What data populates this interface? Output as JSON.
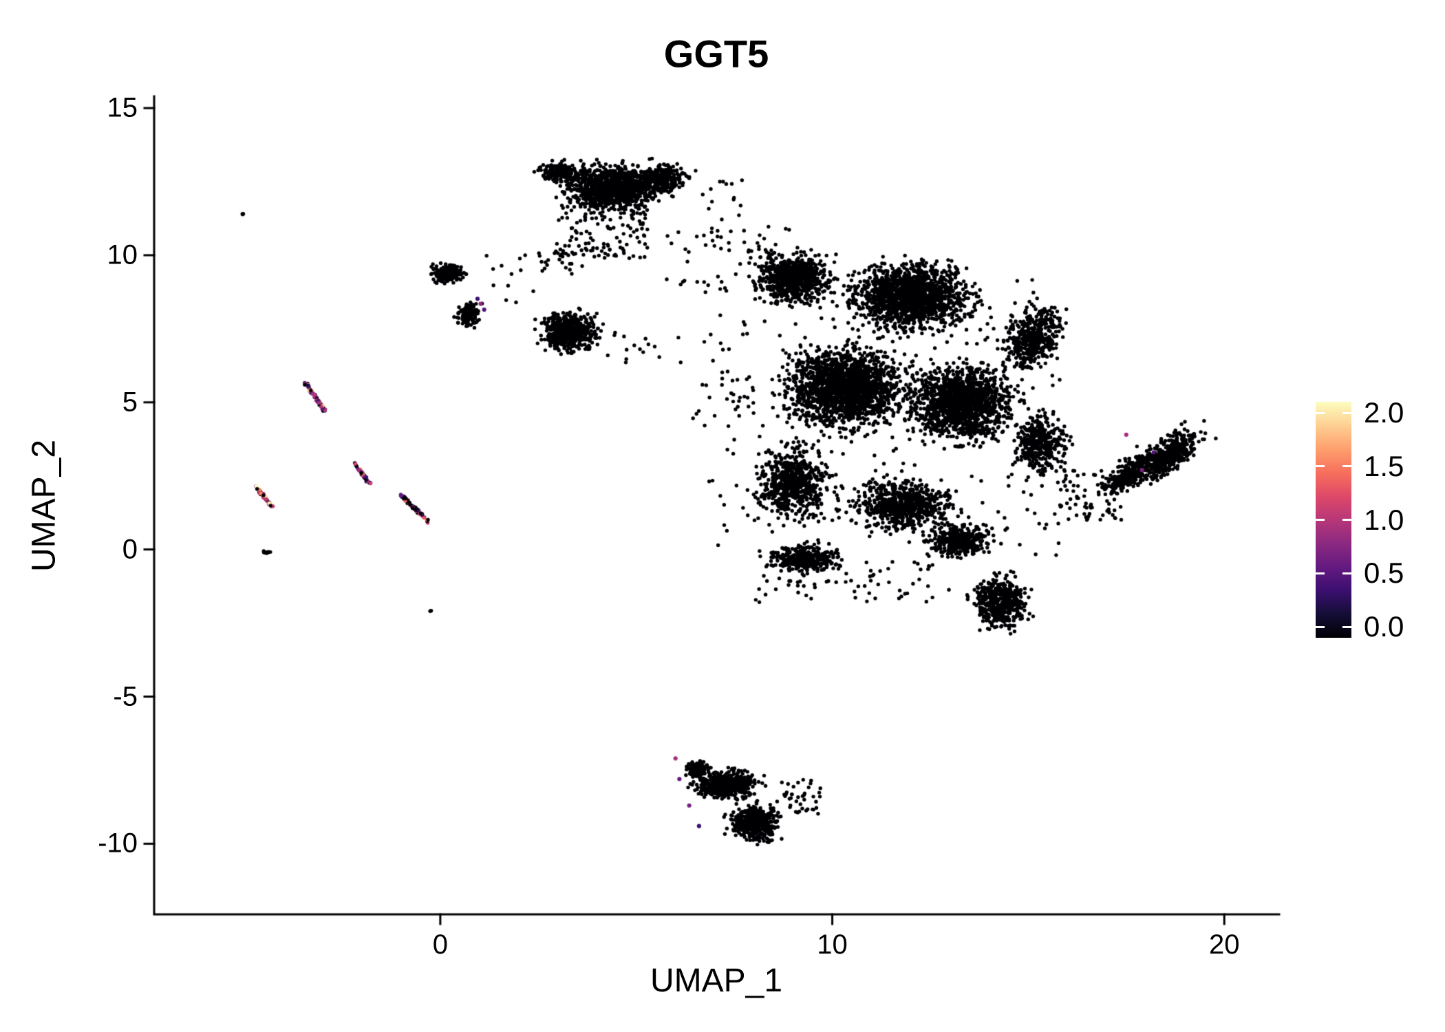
{
  "title": "GGT5",
  "axes": {
    "x_label": "UMAP_1",
    "y_label": "UMAP_2",
    "x_ticks": [
      0,
      10,
      20
    ],
    "y_ticks": [
      -10,
      -5,
      0,
      5,
      10,
      15
    ],
    "xlim": [
      -7.3,
      21.4
    ],
    "ylim": [
      -12.4,
      15.4
    ]
  },
  "legend": {
    "tick_labels": [
      "0.0",
      "0.5",
      "1.0",
      "1.5",
      "2.0"
    ],
    "tick_values": [
      0,
      0.5,
      1,
      1.5,
      2
    ],
    "min": 0,
    "max": 2,
    "colormap": "magma",
    "color_anchors": [
      "#000004",
      "#140e36",
      "#3b0f70",
      "#641a80",
      "#8c2981",
      "#b73779",
      "#de4968",
      "#f7705c",
      "#fe9f6d",
      "#fecf92",
      "#fcfdbf"
    ]
  },
  "chart_data": {
    "type": "scatter",
    "title": "GGT5",
    "xlabel": "UMAP_1",
    "ylabel": "UMAP_2",
    "xlim": [
      -7.3,
      21.4
    ],
    "ylim": [
      -12.4,
      15.4
    ],
    "x_ticks": [
      0,
      10,
      20
    ],
    "y_ticks": [
      -10,
      -5,
      0,
      5,
      10,
      15
    ],
    "color_scale": {
      "name": "magma",
      "domain": [
        0,
        2
      ],
      "legend_ticks": [
        0,
        0.5,
        1,
        1.5,
        2
      ],
      "zero_color": "#000004"
    },
    "point_radius_px": 2.7,
    "clusters": [
      {
        "name": "top-cluster-core",
        "shape": "blob",
        "cx": 4.4,
        "cy": 12.3,
        "rx": 1.9,
        "ry": 1.15,
        "n": 1100
      },
      {
        "name": "top-cluster-left",
        "shape": "blob",
        "cx": 3.0,
        "cy": 12.8,
        "rx": 0.8,
        "ry": 0.55,
        "n": 180
      },
      {
        "name": "top-cluster-right",
        "shape": "blob",
        "cx": 5.7,
        "cy": 12.6,
        "rx": 0.9,
        "ry": 0.8,
        "n": 260
      },
      {
        "name": "top-cluster-fringe",
        "shape": "blob",
        "cx": 4.1,
        "cy": 10.8,
        "rx": 1.2,
        "ry": 0.9,
        "n": 130,
        "dist": "uniform"
      },
      {
        "name": "top-cluster-trail",
        "shape": "blob",
        "cx": 3.1,
        "cy": 9.6,
        "rx": 0.6,
        "ry": 0.6,
        "n": 18,
        "dist": "uniform"
      },
      {
        "name": "top-cluster-outliers",
        "shape": "blob",
        "cx": 7.1,
        "cy": 11.9,
        "rx": 0.6,
        "ry": 0.7,
        "n": 14,
        "dist": "uniform"
      },
      {
        "name": "upper-left-cluster-top",
        "shape": "blob",
        "cx": 0.2,
        "cy": 9.4,
        "rx": 0.65,
        "ry": 0.5,
        "n": 210
      },
      {
        "name": "upper-left-cluster-bottom",
        "shape": "blob",
        "cx": 0.72,
        "cy": 8.0,
        "rx": 0.45,
        "ry": 0.65,
        "n": 140
      },
      {
        "name": "mid-left-cluster",
        "shape": "blob",
        "cx": 3.3,
        "cy": 7.4,
        "rx": 1.05,
        "ry": 1.0,
        "n": 500
      },
      {
        "name": "main-mass-top-left",
        "shape": "blob",
        "cx": 9.0,
        "cy": 9.2,
        "rx": 1.5,
        "ry": 1.3,
        "n": 700
      },
      {
        "name": "main-mass-top-right",
        "shape": "blob",
        "cx": 12.0,
        "cy": 8.6,
        "rx": 2.3,
        "ry": 1.7,
        "n": 1500
      },
      {
        "name": "main-mass-center",
        "shape": "blob",
        "cx": 10.3,
        "cy": 5.5,
        "rx": 2.3,
        "ry": 2.1,
        "n": 1800
      },
      {
        "name": "main-mass-center-right",
        "shape": "blob",
        "cx": 13.3,
        "cy": 5.0,
        "rx": 2.0,
        "ry": 2.0,
        "n": 1400
      },
      {
        "name": "main-mass-right-arm",
        "shape": "blob",
        "cx": 15.1,
        "cy": 7.2,
        "rx": 1.1,
        "ry": 1.7,
        "n": 480,
        "angle": -15
      },
      {
        "name": "main-mass-lower-left",
        "shape": "blob",
        "cx": 9.0,
        "cy": 2.2,
        "rx": 1.4,
        "ry": 1.9,
        "n": 650
      },
      {
        "name": "main-mass-lower-mid",
        "shape": "blob",
        "cx": 11.8,
        "cy": 1.5,
        "rx": 2.0,
        "ry": 1.3,
        "n": 650
      },
      {
        "name": "main-mass-right-lower",
        "shape": "blob",
        "cx": 15.3,
        "cy": 3.6,
        "rx": 1.0,
        "ry": 1.5,
        "n": 380
      },
      {
        "name": "main-mass-bottom-spur",
        "shape": "blob",
        "cx": 9.3,
        "cy": -0.3,
        "rx": 1.4,
        "ry": 0.7,
        "n": 300
      },
      {
        "name": "main-mass-bottom-mid",
        "shape": "blob",
        "cx": 13.2,
        "cy": 0.3,
        "rx": 1.3,
        "ry": 0.9,
        "n": 330
      },
      {
        "name": "main-mass-tail",
        "shape": "blob",
        "cx": 14.3,
        "cy": -1.8,
        "rx": 1.1,
        "ry": 1.4,
        "n": 480
      },
      {
        "name": "main-mass-halo",
        "shape": "blob",
        "cx": 11.3,
        "cy": 4.5,
        "rx": 4.6,
        "ry": 4.8,
        "n": 260,
        "dist": "uniform"
      },
      {
        "name": "right-band-upper",
        "shape": "blob",
        "cx": 18.6,
        "cy": 3.2,
        "rx": 1.6,
        "ry": 0.75,
        "n": 450,
        "angle": 50
      },
      {
        "name": "right-band-lower",
        "shape": "blob",
        "cx": 17.6,
        "cy": 2.6,
        "rx": 1.4,
        "ry": 0.6,
        "n": 300,
        "angle": 50
      },
      {
        "name": "right-band-link",
        "shape": "blob",
        "cx": 16.6,
        "cy": 1.9,
        "rx": 0.8,
        "ry": 0.9,
        "n": 70,
        "dist": "uniform"
      },
      {
        "name": "bottom-cluster-upper",
        "shape": "blob",
        "cx": 7.3,
        "cy": -8.0,
        "rx": 1.25,
        "ry": 0.75,
        "n": 500
      },
      {
        "name": "bottom-cluster-lower",
        "shape": "blob",
        "cx": 8.0,
        "cy": -9.3,
        "rx": 1.0,
        "ry": 0.95,
        "n": 430
      },
      {
        "name": "bottom-cluster-left",
        "shape": "blob",
        "cx": 6.6,
        "cy": -7.5,
        "rx": 0.5,
        "ry": 0.45,
        "n": 120
      },
      {
        "name": "bottom-cluster-tip",
        "shape": "blob",
        "cx": 9.2,
        "cy": -8.4,
        "rx": 0.5,
        "ry": 0.6,
        "n": 40,
        "dist": "uniform"
      },
      {
        "name": "left-small-pair",
        "shape": "blob",
        "cx": -4.45,
        "cy": -0.1,
        "rx": 0.2,
        "ry": 0.1,
        "n": 10
      },
      {
        "name": "bridge-noise",
        "shape": "blob",
        "cx": 7.3,
        "cy": 10.0,
        "rx": 1.6,
        "ry": 1.0,
        "n": 55,
        "dist": "uniform"
      },
      {
        "name": "left-noise",
        "shape": "blob",
        "cx": 1.8,
        "cy": 9.2,
        "rx": 0.9,
        "ry": 0.9,
        "n": 14,
        "dist": "uniform"
      },
      {
        "name": "mid-noise",
        "shape": "blob",
        "cx": 5.2,
        "cy": 6.9,
        "rx": 1.0,
        "ry": 0.6,
        "n": 16,
        "dist": "uniform"
      },
      {
        "name": "mass-west-noise",
        "shape": "blob",
        "cx": 7.2,
        "cy": 5.2,
        "rx": 0.8,
        "ry": 0.9,
        "n": 25,
        "dist": "uniform"
      },
      {
        "name": "below-mass-noise",
        "shape": "blob",
        "cx": 10.6,
        "cy": -1.1,
        "rx": 2.6,
        "ry": 0.7,
        "n": 70,
        "dist": "uniform"
      },
      {
        "name": "single-dot-low",
        "shape": "blob",
        "cx": -0.25,
        "cy": -2.1,
        "rx": 0.06,
        "ry": 0.05,
        "n": 2
      },
      {
        "name": "single-dot-topleft",
        "shape": "blob",
        "cx": -5.05,
        "cy": 11.4,
        "rx": 0.08,
        "ry": 0.05,
        "n": 3
      },
      {
        "name": "ggt5-streak-1",
        "shape": "streak",
        "cx": -3.2,
        "cy": 5.2,
        "len": 0.55,
        "angle": -62,
        "jitter": 0.07,
        "n": 75,
        "colored": true,
        "v_min": 0.2,
        "v_max": 1.9,
        "black_frac": 0.25
      },
      {
        "name": "ggt5-streak-2",
        "shape": "streak",
        "cx": -2.0,
        "cy": 2.6,
        "len": 0.42,
        "angle": -61,
        "jitter": 0.06,
        "n": 48,
        "colored": true,
        "v_min": 0.2,
        "v_max": 1.6,
        "black_frac": 0.3
      },
      {
        "name": "ggt5-streak-3",
        "shape": "streak",
        "cx": -4.5,
        "cy": 1.8,
        "len": 0.41,
        "angle": -59,
        "jitter": 0.06,
        "n": 55,
        "colored": true,
        "v_min": 0.7,
        "v_max": 2.0,
        "black_frac": 0.15
      },
      {
        "name": "ggt5-streak-4",
        "shape": "streak",
        "cx": -0.65,
        "cy": 1.4,
        "len": 0.6,
        "angle": -51,
        "jitter": 0.07,
        "n": 80,
        "colored": true,
        "v_min": 0.1,
        "v_max": 1.4,
        "black_frac": 0.45
      }
    ],
    "accent_points": [
      {
        "x": 1.03,
        "y": 8.35,
        "v": 0.8
      },
      {
        "x": 1.12,
        "y": 8.15,
        "v": 0.5
      },
      {
        "x": 0.95,
        "y": 8.52,
        "v": 0.4
      },
      {
        "x": 17.5,
        "y": 3.9,
        "v": 0.9
      },
      {
        "x": 17.9,
        "y": 2.7,
        "v": 0.7
      },
      {
        "x": 18.2,
        "y": 3.3,
        "v": 0.5
      },
      {
        "x": 6.0,
        "y": -7.1,
        "v": 0.9
      },
      {
        "x": 6.1,
        "y": -7.8,
        "v": 0.6
      },
      {
        "x": 6.35,
        "y": -8.7,
        "v": 0.7
      },
      {
        "x": 6.6,
        "y": -9.4,
        "v": 0.4
      }
    ]
  }
}
